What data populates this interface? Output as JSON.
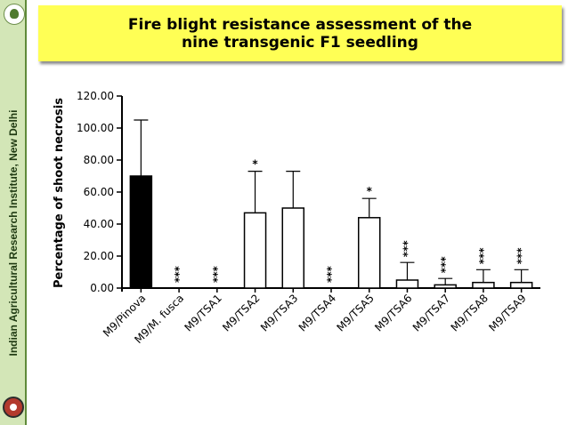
{
  "slide": {
    "title": "Fire blight resistance assessment of the nine transgenic F1 seedling",
    "institute": "Indian Agricultural Research Institute, New Delhi"
  },
  "colors": {
    "title_bg": "#ffff55",
    "sidebar_bg": "#d3e6b7",
    "control_bar": "#000000",
    "bar": "#ffffff"
  },
  "chart_data": {
    "type": "bar",
    "title": "",
    "xlabel": "",
    "ylabel": "Percentage of shoot necrosis",
    "ylim": [
      0,
      120
    ],
    "yticks": [
      "0.00",
      "20.00",
      "40.00",
      "60.00",
      "80.00",
      "100.00",
      "120.00"
    ],
    "ytick_values": [
      0,
      20,
      40,
      60,
      80,
      100,
      120
    ],
    "categories": [
      "M9/Pinova",
      "M9/M. fusca",
      "M9/TSA1",
      "M9/TSA2",
      "M9/TSA3",
      "M9/TSA4",
      "M9/TSA5",
      "M9/TSA6",
      "M9/TSA7",
      "M9/TSA8",
      "M9/TSA9"
    ],
    "values": [
      70,
      0,
      0,
      47,
      50,
      0,
      44,
      5,
      2,
      3.5,
      3.5
    ],
    "errors": [
      35,
      0,
      0,
      26,
      23,
      0,
      12,
      11,
      4,
      8,
      8
    ],
    "fills": [
      "black",
      "white",
      "white",
      "white",
      "white",
      "white",
      "white",
      "white",
      "white",
      "white",
      "white"
    ],
    "significance": [
      "",
      "***",
      "***",
      "*",
      "",
      "***",
      "*",
      "***",
      "***",
      "***",
      "***"
    ],
    "grid": false,
    "legend": "none"
  }
}
